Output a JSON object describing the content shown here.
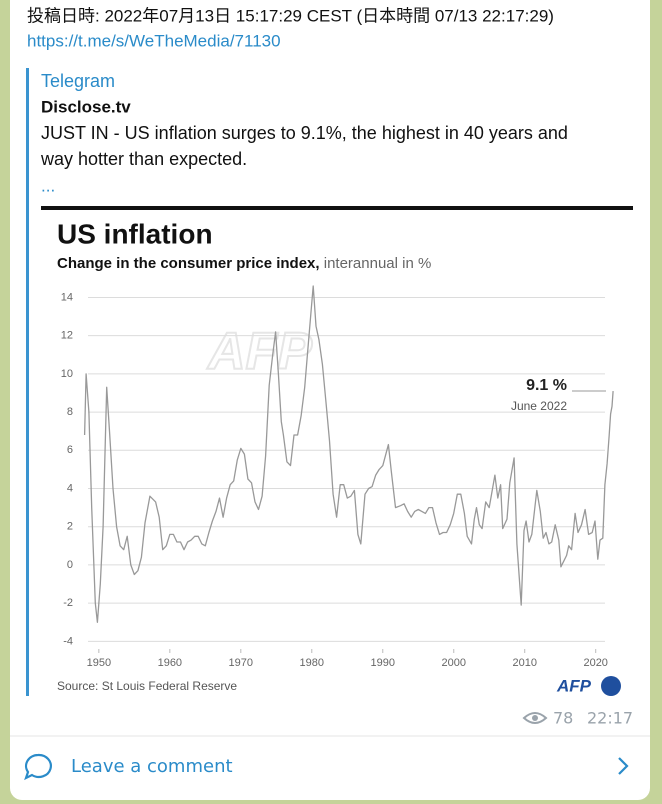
{
  "header": {
    "posted": "投稿日時: 2022年07月13日 15:17:29 CEST (日本時間 07/13 22:17:29)",
    "link": "https://t.me/s/WeTheMedia/71130"
  },
  "post": {
    "source": "Telegram",
    "author": "Disclose.tv",
    "lines": [
      "JUST IN - US inflation surges to 9.1%, the highest in 40 years and",
      "way hotter than expected."
    ],
    "more": "..."
  },
  "chart_data": {
    "type": "line",
    "title": "US inflation",
    "subtitle": "Change in the consumer price index,",
    "unit_note": "interannual in %",
    "watermark": "AFP",
    "annotation": "9.1 %",
    "annotation_note": "June 2022",
    "source": "Source: St Louis Federal Reserve",
    "logo": "AFP",
    "color": "#999999",
    "grid": true,
    "xlim": [
      1946.5,
      2023
    ],
    "xticks": [
      1950,
      1960,
      1970,
      1980,
      1990,
      2000,
      2010,
      2020
    ],
    "ylim": [
      -4.4,
      14.6
    ],
    "yticks": [
      -4,
      -2,
      0,
      2,
      4,
      6,
      8,
      10,
      12,
      14
    ],
    "x": [
      1948.0,
      1948.2,
      1948.6,
      1949.0,
      1949.5,
      1949.8,
      1950.2,
      1950.6,
      1951.1,
      1951.5,
      1952.0,
      1952.5,
      1953.0,
      1953.5,
      1954.0,
      1954.5,
      1955.0,
      1955.5,
      1956.0,
      1956.5,
      1957.2,
      1958.0,
      1958.5,
      1959.0,
      1959.5,
      1960.0,
      1960.5,
      1961.0,
      1961.5,
      1962.0,
      1962.5,
      1963.0,
      1963.5,
      1964.0,
      1964.5,
      1965.0,
      1965.5,
      1966.0,
      1966.5,
      1967.0,
      1967.5,
      1968.0,
      1968.5,
      1969.0,
      1969.5,
      1970.0,
      1970.5,
      1971.0,
      1971.5,
      1972.0,
      1972.5,
      1973.0,
      1973.5,
      1974.0,
      1974.5,
      1974.9,
      1975.3,
      1975.7,
      1976.0,
      1976.5,
      1977.0,
      1977.5,
      1978.0,
      1978.5,
      1979.0,
      1979.5,
      1980.2,
      1980.6,
      1981.0,
      1981.5,
      1982.0,
      1982.5,
      1983.0,
      1983.5,
      1984.0,
      1984.5,
      1985.0,
      1985.5,
      1986.0,
      1986.5,
      1986.9,
      1987.5,
      1988.0,
      1988.5,
      1989.0,
      1989.5,
      1990.0,
      1990.8,
      1991.2,
      1991.8,
      1992.5,
      1993.0,
      1993.5,
      1994.0,
      1994.5,
      1995.0,
      1995.5,
      1996.0,
      1996.5,
      1997.0,
      1997.5,
      1998.0,
      1998.5,
      1999.0,
      1999.5,
      2000.0,
      2000.5,
      2001.0,
      2001.5,
      2001.9,
      2002.5,
      2002.9,
      2003.2,
      2003.6,
      2004.0,
      2004.5,
      2005.0,
      2005.8,
      2006.2,
      2006.6,
      2006.9,
      2007.5,
      2007.9,
      2008.5,
      2008.9,
      2009.5,
      2009.9,
      2010.2,
      2010.6,
      2011.0,
      2011.7,
      2012.2,
      2012.6,
      2013.0,
      2013.4,
      2013.8,
      2014.3,
      2014.8,
      2015.1,
      2015.5,
      2015.9,
      2016.2,
      2016.6,
      2017.1,
      2017.5,
      2018.0,
      2018.5,
      2019.0,
      2019.5,
      2019.9,
      2020.3,
      2020.6,
      2021.0,
      2021.3,
      2021.6,
      2021.9,
      2022.1,
      2022.3,
      2022.45
    ],
    "values": [
      6.8,
      10,
      8,
      3,
      -2,
      -3,
      -1,
      2,
      9.3,
      7,
      4,
      2,
      1,
      0.8,
      1.5,
      0,
      -0.5,
      -0.3,
      0.4,
      2.2,
      3.6,
      3.3,
      2.5,
      0.8,
      1,
      1.6,
      1.6,
      1.2,
      1.2,
      0.8,
      1.2,
      1.3,
      1.5,
      1.5,
      1.1,
      1.0,
      1.7,
      2.3,
      2.8,
      3.5,
      2.5,
      3.5,
      4.2,
      4.4,
      5.5,
      6.1,
      5.8,
      4.5,
      4.3,
      3.3,
      2.9,
      3.6,
      5.7,
      9.4,
      11,
      12.2,
      10,
      7.5,
      6.8,
      5.4,
      5.2,
      6.8,
      6.8,
      7.8,
      9.3,
      11.5,
      14.6,
      12.5,
      11.8,
      10.5,
      8.5,
      6.5,
      3.7,
      2.5,
      4.2,
      4.2,
      3.5,
      3.6,
      3.9,
      1.6,
      1.1,
      3.7,
      4.0,
      4.1,
      4.7,
      5.0,
      5.2,
      6.3,
      4.9,
      3.0,
      3.1,
      3.2,
      2.8,
      2.5,
      2.8,
      2.9,
      2.8,
      2.7,
      3.0,
      3.0,
      2.2,
      1.6,
      1.7,
      1.7,
      2.1,
      2.7,
      3.7,
      3.7,
      2.7,
      1.5,
      1.1,
      2.4,
      3.0,
      2.1,
      1.9,
      3.3,
      3.0,
      4.7,
      3.5,
      4.2,
      1.9,
      2.4,
      4.3,
      5.6,
      1.1,
      -2.1,
      1.8,
      2.3,
      1.2,
      1.6,
      3.9,
      2.8,
      1.4,
      1.7,
      1.1,
      1.2,
      2.1,
      1.3,
      -0.1,
      0.2,
      0.5,
      1.0,
      0.8,
      2.7,
      1.7,
      2.1,
      2.9,
      1.6,
      1.7,
      2.3,
      0.3,
      1.3,
      1.4,
      4.2,
      5.3,
      6.8,
      7.9,
      8.3,
      9.1
    ]
  },
  "footer": {
    "views": "78",
    "time": "22:17",
    "comment": "Leave a comment"
  }
}
